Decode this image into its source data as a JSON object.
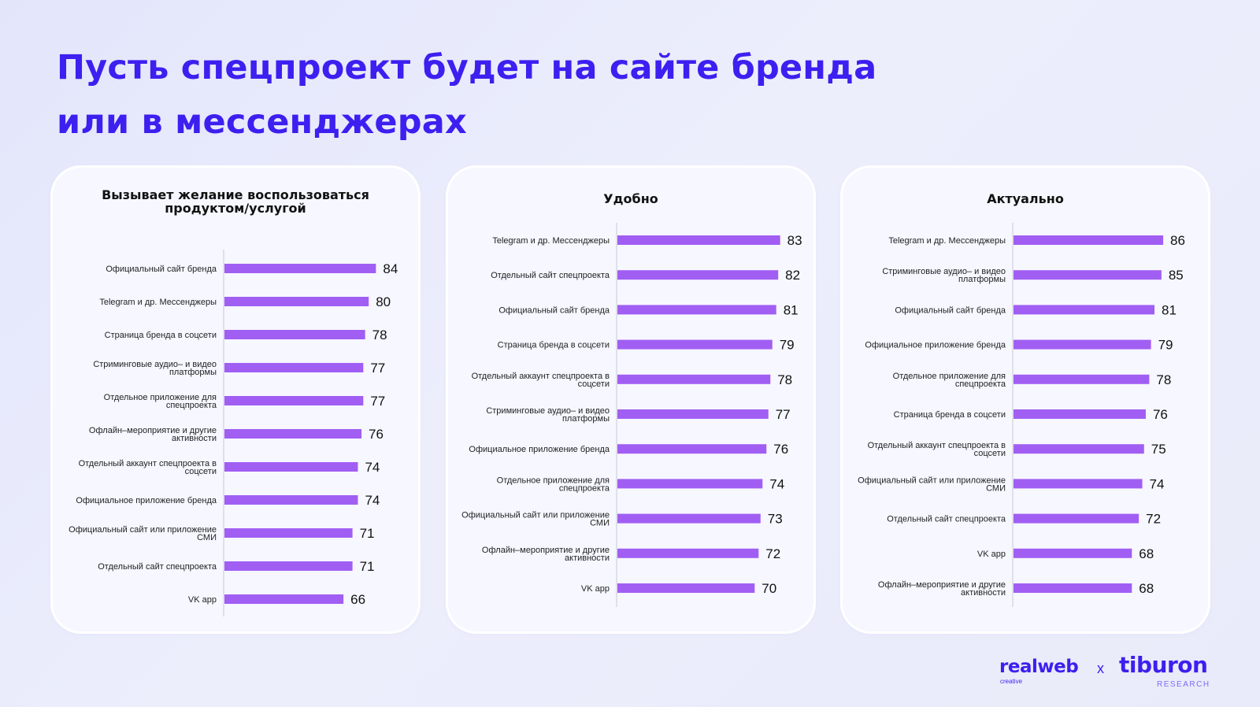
{
  "page": {
    "title_line1": "Пусть спецпроект будет на сайте бренда",
    "title_line2": "или в мессенджерах"
  },
  "colors": {
    "accent": "#3d1ff0",
    "bar": "#a15ef3",
    "card_bg": "#f6f7ff"
  },
  "chart_data": [
    {
      "type": "bar",
      "orientation": "horizontal",
      "title_lines": [
        "Вызывает желание воспользоваться",
        "продуктом/услугой"
      ],
      "categories": [
        [
          "Официальный сайт бренда"
        ],
        [
          "Telegram и др. Мессенджеры"
        ],
        [
          "Страница бренда в соцсети"
        ],
        [
          "Стриминговые аудио– и видео",
          "платформы"
        ],
        [
          "Отдельное приложение для",
          "спецпроекта"
        ],
        [
          "Офлайн–мероприятие и другие",
          "активности"
        ],
        [
          "Отдельный аккаунт спецпроекта в",
          "соцсети"
        ],
        [
          "Официальное приложение бренда"
        ],
        [
          "Официальный сайт или приложение",
          "СМИ"
        ],
        [
          "Отдельный сайт спецпроекта"
        ],
        [
          "VK app"
        ]
      ],
      "values": [
        84,
        80,
        78,
        77,
        77,
        76,
        74,
        74,
        71,
        71,
        66
      ],
      "data_labels": [
        "84",
        "80",
        "78",
        "77",
        "77",
        "76",
        "74",
        "74",
        "71",
        "71",
        "66"
      ]
    },
    {
      "type": "bar",
      "orientation": "horizontal",
      "title_lines": [
        "Удобно"
      ],
      "categories": [
        [
          "Telegram и др. Мессенджеры"
        ],
        [
          "Отдельный сайт спецпроекта"
        ],
        [
          "Официальный сайт бренда"
        ],
        [
          "Страница бренда в соцсети"
        ],
        [
          "Отдельный аккаунт спецпроекта в",
          "соцсети"
        ],
        [
          "Стриминговые аудио– и видео",
          "платформы"
        ],
        [
          "Официальное приложение бренда"
        ],
        [
          "Отдельное приложение для",
          "спецпроекта"
        ],
        [
          "Официальный сайт или приложение",
          "СМИ"
        ],
        [
          "Офлайн–мероприятие и другие",
          "активности"
        ],
        [
          "VK app"
        ]
      ],
      "values": [
        83,
        82,
        81,
        79,
        78,
        77,
        76,
        74,
        73,
        72,
        70
      ],
      "data_labels": [
        "83",
        "82",
        "81",
        "79",
        "78",
        "77",
        "76",
        "74",
        "73",
        "72",
        "70"
      ]
    },
    {
      "type": "bar",
      "orientation": "horizontal",
      "title_lines": [
        "Актуально"
      ],
      "categories": [
        [
          "Telegram и др. Мессенджеры"
        ],
        [
          "Стриминговые аудио– и видео",
          "платформы"
        ],
        [
          "Официальный сайт бренда"
        ],
        [
          "Официальное приложение бренда"
        ],
        [
          "Отдельное приложение для",
          "спецпроекта"
        ],
        [
          "Страница бренда в соцсети"
        ],
        [
          "Отдельный аккаунт спецпроекта в",
          "соцсети"
        ],
        [
          "Официальный сайт или приложение",
          "СМИ"
        ],
        [
          "Отдельный сайт спецпроекта"
        ],
        [
          "VK app"
        ],
        [
          "Офлайн–мероприятие и другие",
          "активности"
        ]
      ],
      "values": [
        86,
        85,
        81,
        79,
        78,
        76,
        75,
        74,
        72,
        68,
        68
      ],
      "data_labels": [
        "86",
        "85",
        "81",
        "79",
        "78",
        "76",
        "75",
        "74",
        "72",
        "68",
        "68"
      ]
    }
  ],
  "footer": {
    "logo_left": "realweb",
    "logo_left_sub": "creative",
    "separator": "x",
    "logo_right": "tiburon",
    "logo_right_sub": "RESEARCH"
  }
}
